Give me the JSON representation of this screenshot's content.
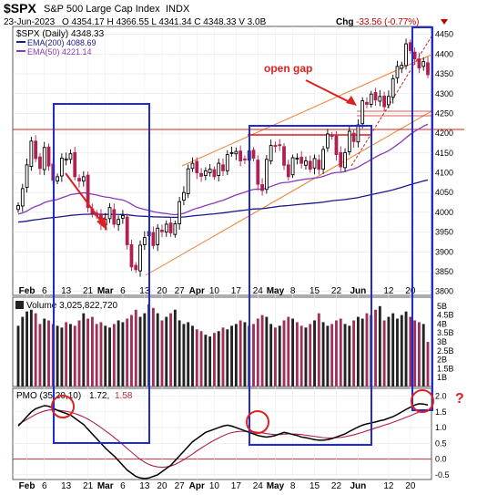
{
  "header": {
    "symbol": "$SPX",
    "name": "S&P 500 Large Cap Index",
    "exchange": "INDX",
    "date": "23-Jun-2023",
    "ohlc_text": "O 4354.17  H 4366.55  L 4341.34  C 4348.33  V 3.0B",
    "change_label": "Chg",
    "change_value": "-33.56 (-0.77%)"
  },
  "legend": {
    "price": "$SPX (Daily) 4348.33",
    "ema200": "EMA(200) 4088.69",
    "ema50": "EMA(50) 4221.14"
  },
  "volume_label": "Volume 3,025,822,720",
  "pmo_label": {
    "prefix": "PMO (35,20,10)",
    "value1": "1.72,",
    "value2": "1.58"
  },
  "annotations": {
    "open_gap": "open gap",
    "question": "?"
  },
  "colors": {
    "up": "#000000",
    "down": "#b02050",
    "ema200": "#1a1a8c",
    "ema50": "#8a3ab9",
    "box": "#1f2ad6",
    "annotation": "#e02020",
    "channel": "#f08030"
  },
  "chart_data": {
    "type": "candlestick",
    "price_axis": {
      "ticks": [
        3800,
        3850,
        3900,
        3950,
        4000,
        4050,
        4100,
        4150,
        4200,
        4250,
        4300,
        4350,
        4400,
        4450
      ],
      "range": [
        3790,
        4470
      ]
    },
    "volume_axis": {
      "ticks": [
        "1B",
        "1.5B",
        "2B",
        "2.5B",
        "3B",
        "3.5B",
        "4B",
        "4.5B",
        "5B"
      ]
    },
    "pmo_axis": {
      "ticks": [
        -0.5,
        0.0,
        0.5,
        1.0,
        1.5,
        2.0
      ],
      "range": [
        -0.65,
        2.25
      ]
    },
    "x_ticks": [
      "Feb",
      "6",
      "13",
      "21",
      "Mar",
      "6",
      "13",
      "20",
      "27",
      "Apr",
      "10",
      "17",
      "24",
      "May",
      "8",
      "15",
      "22",
      "Jun",
      "12",
      "20"
    ],
    "closes": [
      4017,
      4060,
      4120,
      4180,
      4136,
      4111,
      4164,
      4117,
      4081,
      4090,
      4137,
      4135,
      4148,
      4090,
      4079,
      4090,
      4012,
      3997,
      3991,
      3970,
      3982,
      4012,
      3970,
      3982,
      3992,
      3918,
      3862,
      3855,
      3917,
      3936,
      3951,
      3916,
      3960,
      3951,
      3970,
      3948,
      3971,
      4027,
      4050,
      4110,
      4124,
      4100,
      4091,
      4105,
      4109,
      4090,
      4124,
      4105,
      4146,
      4151,
      4154,
      4130,
      4134,
      4155,
      4137,
      4071,
      4055,
      4134,
      4169,
      4167,
      4169,
      4119,
      4090,
      4138,
      4137,
      4124,
      4130,
      4109,
      4136,
      4109,
      4159,
      4198,
      4192,
      4146,
      4115,
      4151,
      4205,
      4179,
      4221,
      4282,
      4273,
      4299,
      4284,
      4293,
      4267,
      4293,
      4338,
      4369,
      4372,
      4426,
      4409,
      4388,
      4365,
      4381,
      4348
    ],
    "volume_values": [
      3.9,
      4.4,
      4.7,
      4.8,
      4.6,
      4.0,
      4.3,
      4.2,
      4.0,
      3.9,
      3.8,
      4.1,
      4.0,
      3.9,
      4.2,
      4.6,
      4.3,
      4.4,
      4.0,
      4.1,
      3.9,
      3.8,
      4.0,
      4.2,
      4.1,
      4.3,
      4.5,
      4.8,
      4.4,
      4.6,
      5.1,
      4.9,
      4.6,
      4.2,
      4.4,
      4.6,
      4.8,
      4.2,
      4.0,
      4.1,
      3.9,
      3.7,
      3.6,
      3.4,
      3.3,
      3.5,
      3.6,
      3.8,
      3.7,
      3.9,
      4.0,
      4.2,
      4.1,
      3.9,
      4.0,
      4.3,
      4.5,
      4.4,
      4.0,
      3.8,
      3.9,
      4.2,
      4.4,
      4.3,
      4.1,
      3.9,
      3.8,
      4.0,
      4.2,
      4.6,
      4.1,
      3.9,
      4.0,
      4.2,
      4.3,
      4.0,
      3.9,
      4.2,
      4.4,
      4.3,
      4.6,
      4.5,
      4.8,
      5.0,
      4.2,
      4.4,
      4.6,
      4.3,
      4.5,
      4.7,
      4.4,
      4.2,
      4.1,
      4.0,
      3.0
    ],
    "pmo_values": [
      1.05,
      1.2,
      1.35,
      1.5,
      1.6,
      1.65,
      1.7,
      1.68,
      1.62,
      1.55,
      1.5,
      1.45,
      1.4,
      1.3,
      1.2,
      1.1,
      0.95,
      0.8,
      0.65,
      0.5,
      0.35,
      0.22,
      0.1,
      -0.05,
      -0.2,
      -0.35,
      -0.45,
      -0.55,
      -0.6,
      -0.62,
      -0.6,
      -0.55,
      -0.5,
      -0.4,
      -0.3,
      -0.2,
      -0.05,
      0.1,
      0.25,
      0.4,
      0.55,
      0.65,
      0.75,
      0.85,
      0.9,
      0.95,
      1.0,
      1.05,
      1.08,
      1.05,
      1.0,
      0.95,
      0.9,
      0.85,
      0.8,
      0.75,
      0.72,
      0.7,
      0.72,
      0.75,
      0.8,
      0.85,
      0.82,
      0.78,
      0.75,
      0.7,
      0.68,
      0.65,
      0.62,
      0.6,
      0.6,
      0.62,
      0.65,
      0.7,
      0.75,
      0.8,
      0.88,
      0.95,
      1.02,
      1.08,
      1.12,
      1.15,
      1.18,
      1.22,
      1.25,
      1.3,
      1.35,
      1.42,
      1.5,
      1.58,
      1.65,
      1.72,
      1.76,
      1.75,
      1.72
    ],
    "pmo_signal_values": [
      1.1,
      1.18,
      1.26,
      1.34,
      1.42,
      1.48,
      1.53,
      1.56,
      1.57,
      1.56,
      1.54,
      1.52,
      1.49,
      1.45,
      1.4,
      1.34,
      1.27,
      1.19,
      1.1,
      1.0,
      0.9,
      0.8,
      0.69,
      0.58,
      0.46,
      0.34,
      0.22,
      0.1,
      -0.01,
      -0.1,
      -0.17,
      -0.22,
      -0.25,
      -0.26,
      -0.25,
      -0.22,
      -0.17,
      -0.1,
      -0.02,
      0.07,
      0.16,
      0.26,
      0.35,
      0.44,
      0.52,
      0.6,
      0.67,
      0.74,
      0.8,
      0.84,
      0.87,
      0.88,
      0.88,
      0.88,
      0.87,
      0.85,
      0.83,
      0.81,
      0.79,
      0.78,
      0.78,
      0.79,
      0.8,
      0.8,
      0.79,
      0.78,
      0.76,
      0.74,
      0.72,
      0.7,
      0.68,
      0.67,
      0.67,
      0.68,
      0.69,
      0.71,
      0.74,
      0.77,
      0.81,
      0.85,
      0.9,
      0.94,
      0.99,
      1.03,
      1.08,
      1.12,
      1.17,
      1.22,
      1.27,
      1.33,
      1.38,
      1.44,
      1.5,
      1.55,
      1.58
    ]
  }
}
